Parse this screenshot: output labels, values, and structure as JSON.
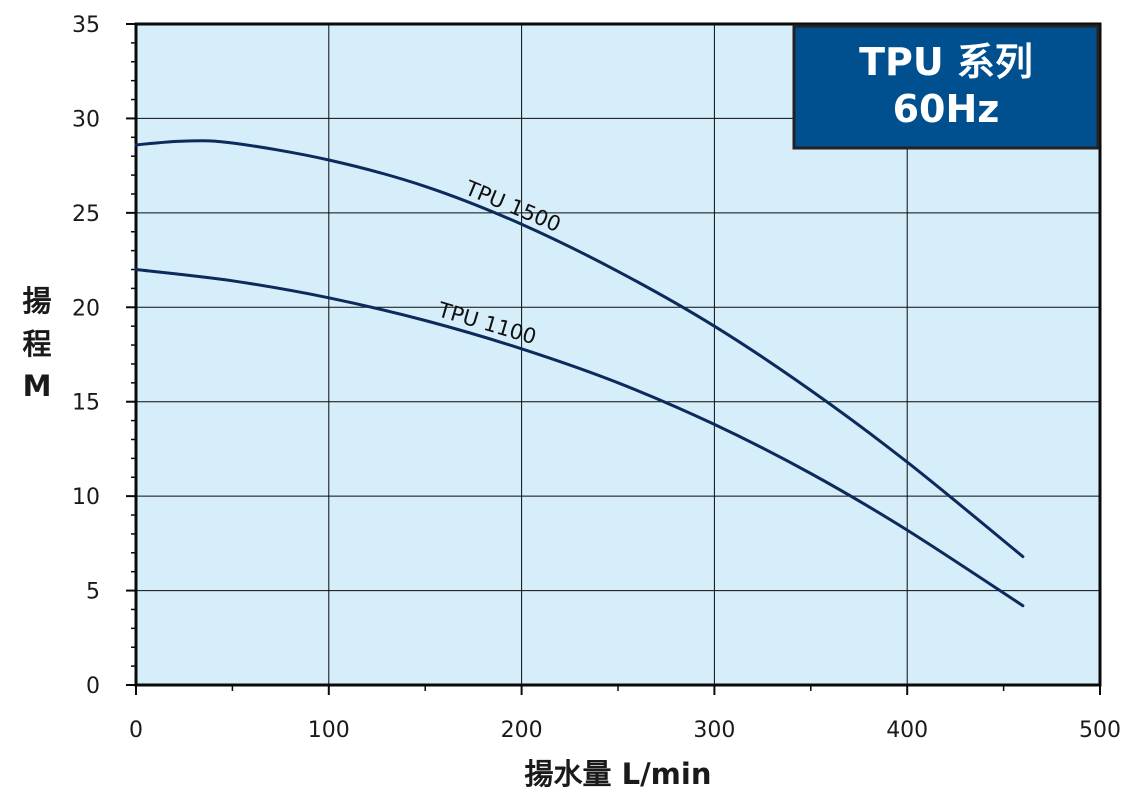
{
  "chart_data": {
    "type": "line",
    "title_box": {
      "line1": "TPU 系列",
      "line2": "60Hz"
    },
    "xlabel": "揚水量 L/min",
    "ylabel_lines": [
      "揚",
      "程",
      "M"
    ],
    "xlim": [
      0,
      500
    ],
    "ylim": [
      0,
      35
    ],
    "x_ticks": [
      0,
      100,
      200,
      300,
      400,
      500
    ],
    "y_ticks": [
      0,
      5,
      10,
      15,
      20,
      25,
      30,
      35
    ],
    "grid": true,
    "series": [
      {
        "name": "TPU 1500",
        "label_at_x": 170,
        "x": [
          0,
          25,
          50,
          100,
          150,
          200,
          250,
          300,
          350,
          400,
          460
        ],
        "y": [
          28.6,
          28.8,
          28.7,
          27.8,
          26.4,
          24.4,
          21.9,
          19.0,
          15.6,
          11.8,
          6.8
        ]
      },
      {
        "name": "TPU 1100",
        "label_at_x": 156,
        "x": [
          0,
          50,
          100,
          150,
          200,
          250,
          300,
          350,
          400,
          460
        ],
        "y": [
          22.0,
          21.4,
          20.5,
          19.3,
          17.8,
          16.0,
          13.8,
          11.2,
          8.2,
          4.2
        ]
      }
    ],
    "colors": {
      "plot_bg": "#d6eefa",
      "line": "#0d2a5c",
      "grid": "#0a0a0a",
      "title_bg": "#00508f",
      "title_border": "#222222",
      "title_text": "#ffffff",
      "axis_text": "#1a1a1a"
    }
  }
}
